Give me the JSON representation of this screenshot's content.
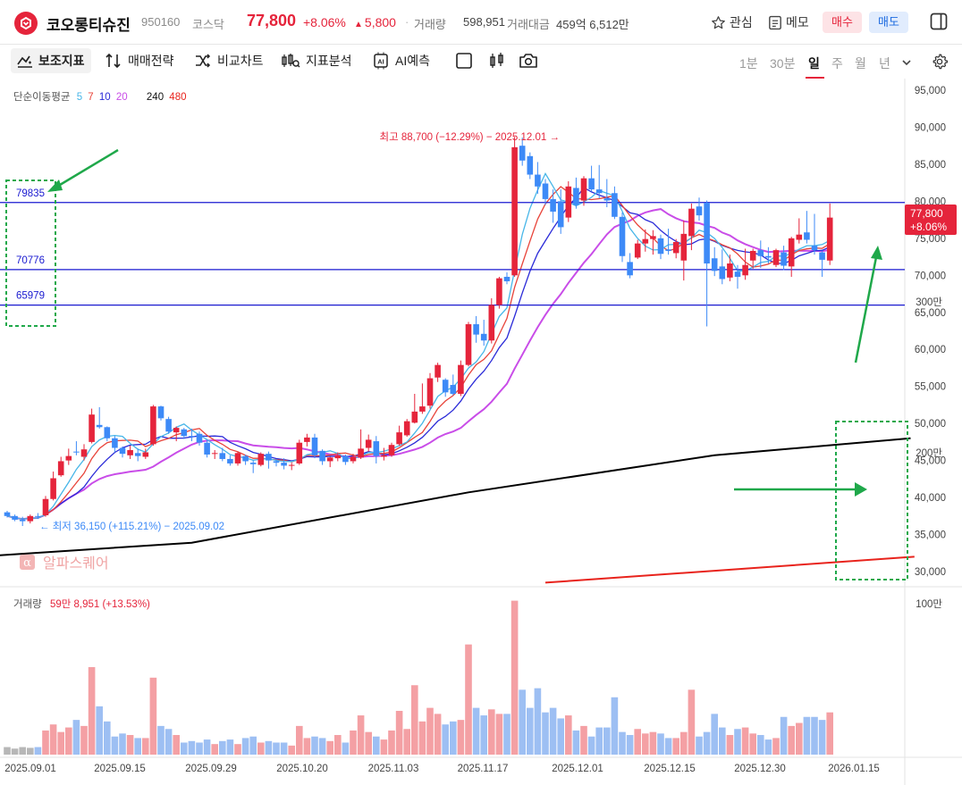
{
  "header": {
    "name": "코오롱티슈진",
    "code": "950160",
    "market": "코스닥",
    "price": "77,800",
    "change_pct": "+8.06%",
    "change_amt": "5,800",
    "volume_label": "거래량",
    "volume_value": "598,951",
    "amount_label": "거래대금",
    "amount_value": "459억 6,512만",
    "watch_label": "관심",
    "memo_label": "메모",
    "buy_label": "매수",
    "sell_label": "매도"
  },
  "toolbar": {
    "indicator": "보조지표",
    "strategy": "매매전략",
    "compare": "비교차트",
    "analysis": "지표분석",
    "ai": "AI예측",
    "periods": [
      "1분",
      "30분",
      "일",
      "주",
      "월",
      "년"
    ],
    "active_period": "일"
  },
  "colors": {
    "up": "#e5243b",
    "down": "#3d8af7",
    "vol_up": "#f4a0a4",
    "vol_down": "#9dbff3",
    "ma5": "#47b6e8",
    "ma7": "#e8443a",
    "ma10": "#2b2bd8",
    "ma20": "#c94de8",
    "ma240": "#000000",
    "ma480": "#e8231c",
    "levels": "#1a1ad0",
    "annotation": "#1fa84a"
  },
  "legend": {
    "title": "단순이동평균",
    "periods": [
      "5",
      "7",
      "10",
      "20",
      "240",
      "480"
    ]
  },
  "annotations": {
    "high": "최고 88,700 (−12.29%) − 2025.12.01 →",
    "low": "← 최저 36,150 (+115.21%) − 2025.09.02",
    "watermark": "알파스퀘어",
    "current_price": "77,800",
    "current_pct": "+8.06%",
    "volume_legend_label": "거래량",
    "volume_legend_value": "59만 8,951 (+13.53%)"
  },
  "chart_data": {
    "type": "candlestick",
    "price_axis": [
      "95,000",
      "90,000",
      "85,000",
      "80,000",
      "75,000",
      "70,000",
      "65,000",
      "60,000",
      "55,000",
      "50,000",
      "45,000",
      "40,000",
      "35,000",
      "30,000"
    ],
    "ylim": [
      28500,
      96500
    ],
    "volume_axis": [
      "300만",
      "200만",
      "100만"
    ],
    "date_labels": [
      "2025.09.01",
      "2025.09.15",
      "2025.09.29",
      "2025.10.20",
      "2025.11.03",
      "2025.11.17",
      "2025.12.01",
      "2025.12.15",
      "2025.12.30",
      "2026.01.15"
    ],
    "levels": [
      79835,
      70776,
      65979
    ],
    "ohlc": [
      [
        38000,
        38200,
        37300,
        37500
      ],
      [
        37500,
        37700,
        36800,
        37000
      ],
      [
        37000,
        37400,
        36150,
        36800
      ],
      [
        36800,
        37700,
        36500,
        37500
      ],
      [
        37500,
        37900,
        37100,
        37400
      ],
      [
        37600,
        40200,
        37400,
        39800
      ],
      [
        39800,
        43500,
        39600,
        42600
      ],
      [
        43000,
        45500,
        42800,
        44900
      ],
      [
        45000,
        46600,
        44400,
        45600
      ],
      [
        46200,
        47600,
        45700,
        46100
      ],
      [
        45500,
        47200,
        45000,
        46500
      ],
      [
        47500,
        52000,
        47300,
        51200
      ],
      [
        49800,
        52200,
        49300,
        49500
      ],
      [
        49500,
        49600,
        47600,
        48000
      ],
      [
        48000,
        48300,
        46100,
        46700
      ],
      [
        46700,
        46900,
        45400,
        45900
      ],
      [
        45700,
        47000,
        45200,
        46400
      ],
      [
        46000,
        46600,
        44900,
        45600
      ],
      [
        45500,
        46600,
        45200,
        46100
      ],
      [
        47200,
        52500,
        47000,
        52300
      ],
      [
        52300,
        52400,
        50400,
        50700
      ],
      [
        50600,
        50900,
        48600,
        48900
      ],
      [
        48800,
        49600,
        47600,
        49400
      ],
      [
        49200,
        49400,
        47900,
        48300
      ],
      [
        48300,
        49300,
        47600,
        48200
      ],
      [
        48600,
        48900,
        47000,
        47400
      ],
      [
        47400,
        47800,
        45400,
        45800
      ],
      [
        46000,
        46400,
        45200,
        46000
      ],
      [
        46000,
        46700,
        44900,
        45200
      ],
      [
        45200,
        45700,
        44300,
        44600
      ],
      [
        44600,
        46200,
        44300,
        46000
      ],
      [
        45600,
        45800,
        44400,
        44900
      ],
      [
        44700,
        45000,
        43300,
        44500
      ],
      [
        44400,
        46100,
        44200,
        45900
      ],
      [
        45900,
        46200,
        43900,
        45000
      ],
      [
        44900,
        45200,
        44200,
        44700
      ],
      [
        44700,
        45300,
        43800,
        44300
      ],
      [
        44400,
        44700,
        43700,
        44400
      ],
      [
        44600,
        47800,
        44400,
        47400
      ],
      [
        47500,
        48600,
        46900,
        48100
      ],
      [
        48100,
        48600,
        45300,
        45700
      ],
      [
        46300,
        46500,
        44400,
        44900
      ],
      [
        44900,
        45500,
        44100,
        45400
      ],
      [
        45300,
        46100,
        44900,
        45700
      ],
      [
        45600,
        45800,
        44400,
        44800
      ],
      [
        44900,
        45900,
        44600,
        45500
      ],
      [
        45400,
        49200,
        45200,
        46600
      ],
      [
        46700,
        48500,
        46200,
        47800
      ],
      [
        47600,
        48300,
        44600,
        45600
      ],
      [
        45500,
        46700,
        45000,
        45700
      ],
      [
        45700,
        47400,
        45500,
        47100
      ],
      [
        47200,
        49700,
        47000,
        48800
      ],
      [
        48400,
        50600,
        48200,
        50300
      ],
      [
        50100,
        54000,
        50000,
        51600
      ],
      [
        51600,
        55400,
        51300,
        52300
      ],
      [
        52400,
        56800,
        52000,
        56100
      ],
      [
        56200,
        58200,
        55600,
        57900
      ],
      [
        55900,
        56100,
        53600,
        54200
      ],
      [
        55200,
        56600,
        53800,
        54000
      ],
      [
        54000,
        58500,
        53700,
        57900
      ],
      [
        57900,
        63700,
        57700,
        63400
      ],
      [
        63400,
        64500,
        60900,
        62000
      ],
      [
        62100,
        64000,
        60500,
        61200
      ],
      [
        61200,
        66900,
        60800,
        66000
      ],
      [
        66000,
        69800,
        65500,
        69600
      ],
      [
        69800,
        70400,
        68800,
        69200
      ],
      [
        70000,
        88700,
        69800,
        87300
      ],
      [
        87500,
        88600,
        84800,
        85500
      ],
      [
        86100,
        86600,
        83000,
        83600
      ],
      [
        83600,
        85300,
        81000,
        82000
      ],
      [
        82400,
        83000,
        79500,
        80300
      ],
      [
        80300,
        81600,
        77100,
        78600
      ],
      [
        80000,
        81600,
        75600,
        76500
      ],
      [
        77800,
        82700,
        77200,
        82000
      ],
      [
        81800,
        83200,
        79000,
        79500
      ],
      [
        80100,
        83400,
        79400,
        83100
      ],
      [
        83100,
        84800,
        81300,
        81600
      ],
      [
        81600,
        84900,
        80400,
        81100
      ],
      [
        80400,
        83000,
        79200,
        80100
      ],
      [
        81100,
        82000,
        77600,
        77900
      ],
      [
        77900,
        78500,
        71800,
        72600
      ],
      [
        71800,
        73000,
        69600,
        70000
      ],
      [
        72400,
        74800,
        72200,
        74300
      ],
      [
        74300,
        76200,
        73200,
        74900
      ],
      [
        74900,
        76100,
        72800,
        75300
      ],
      [
        75000,
        75500,
        72200,
        72900
      ],
      [
        73500,
        76300,
        72800,
        73300
      ],
      [
        73000,
        74900,
        72300,
        74500
      ],
      [
        72000,
        77400,
        69300,
        75600
      ],
      [
        75300,
        79700,
        73400,
        79000
      ],
      [
        79300,
        80500,
        77400,
        78100
      ],
      [
        79800,
        80100,
        63100,
        71600
      ],
      [
        72300,
        73800,
        69900,
        70600
      ],
      [
        71200,
        73500,
        68800,
        69500
      ],
      [
        69700,
        72800,
        69200,
        71600
      ],
      [
        70500,
        71400,
        68200,
        69800
      ],
      [
        70000,
        73600,
        69400,
        71400
      ],
      [
        72000,
        73600,
        70900,
        73300
      ],
      [
        73400,
        74700,
        71000,
        72600
      ],
      [
        72600,
        73800,
        71600,
        72400
      ],
      [
        71400,
        73600,
        71100,
        73400
      ],
      [
        73100,
        74000,
        70700,
        71300
      ],
      [
        71200,
        75200,
        69800,
        75000
      ],
      [
        74800,
        77700,
        74300,
        75500
      ],
      [
        75800,
        78700,
        74300,
        74800
      ],
      [
        74000,
        78300,
        72800,
        73400
      ],
      [
        73100,
        73300,
        69800,
        72100
      ],
      [
        72000,
        79700,
        71400,
        77800
      ]
    ],
    "volume": [
      0.5,
      0.4,
      0.5,
      0.45,
      0.5,
      1.6,
      2.0,
      1.5,
      1.8,
      2.3,
      1.9,
      5.8,
      3.2,
      2.2,
      1.2,
      1.4,
      1.3,
      1.1,
      1.1,
      5.1,
      1.9,
      1.7,
      1.3,
      0.8,
      0.9,
      0.8,
      1.0,
      0.7,
      0.9,
      1.0,
      0.7,
      1.1,
      1.2,
      0.8,
      0.9,
      0.8,
      0.8,
      0.6,
      1.9,
      1.1,
      1.2,
      1.1,
      0.9,
      1.3,
      0.8,
      1.6,
      2.6,
      1.5,
      1.2,
      1.0,
      1.6,
      2.9,
      1.7,
      4.6,
      2.2,
      3.1,
      2.7,
      2.0,
      2.2,
      2.3,
      7.3,
      3.1,
      2.6,
      3.0,
      2.7,
      2.7,
      10.2,
      4.3,
      3.1,
      4.4,
      2.8,
      3.1,
      2.4,
      2.6,
      1.6,
      1.9,
      1.2,
      1.8,
      1.8,
      3.8,
      1.5,
      1.3,
      1.7,
      1.4,
      1.5,
      1.4,
      1.1,
      1.1,
      1.5,
      4.3,
      1.2,
      1.5,
      2.7,
      1.8,
      1.3,
      1.7,
      1.8,
      1.4,
      1.3,
      1.0,
      1.1,
      2.5,
      1.9,
      2.1,
      2.5,
      2.5,
      2.3,
      2.8
    ],
    "ma240": {
      "x": [
        0,
        24,
        60,
        92,
        118
      ],
      "y": [
        32200,
        33900,
        40700,
        45700,
        48000
      ]
    },
    "ma480": {
      "x": [
        70,
        118
      ],
      "y": [
        28500,
        32000
      ]
    }
  }
}
